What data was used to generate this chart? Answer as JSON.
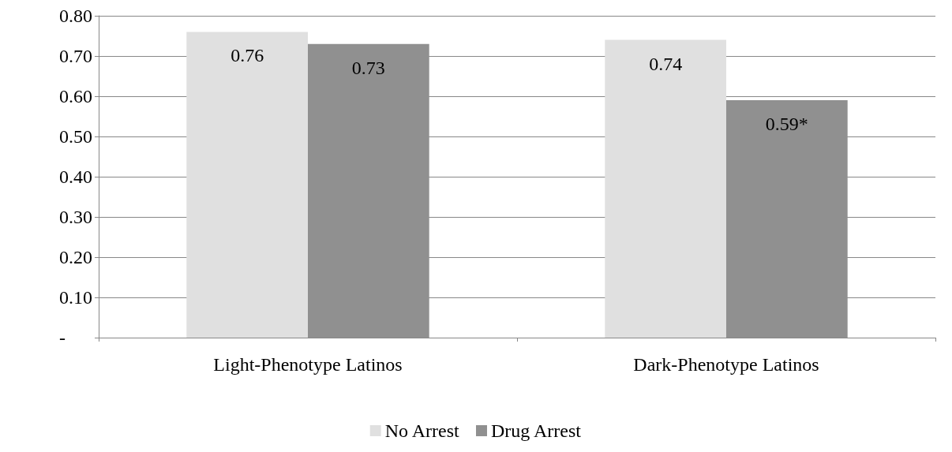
{
  "chart_data": {
    "type": "bar",
    "categories": [
      "Light-Phenotype Latinos",
      "Dark-Phenotype Latinos"
    ],
    "series": [
      {
        "name": "No Arrest",
        "color": "#e0e0e0",
        "values": [
          0.76,
          0.74
        ],
        "value_labels": [
          "0.76",
          "0.74"
        ]
      },
      {
        "name": "Drug Arrest",
        "color": "#909090",
        "values": [
          0.73,
          0.59
        ],
        "value_labels": [
          "0.73",
          "0.59*"
        ]
      }
    ],
    "ylim": [
      0,
      0.8
    ],
    "yticks": [
      {
        "value": 0,
        "label": "-"
      },
      {
        "value": 0.1,
        "label": "0.10"
      },
      {
        "value": 0.2,
        "label": "0.20"
      },
      {
        "value": 0.3,
        "label": "0.30"
      },
      {
        "value": 0.4,
        "label": "0.40"
      },
      {
        "value": 0.5,
        "label": "0.50"
      },
      {
        "value": 0.6,
        "label": "0.60"
      },
      {
        "value": 0.7,
        "label": "0.70"
      },
      {
        "value": 0.8,
        "label": "0.80"
      }
    ],
    "grid": "y",
    "legend": "bottom"
  }
}
